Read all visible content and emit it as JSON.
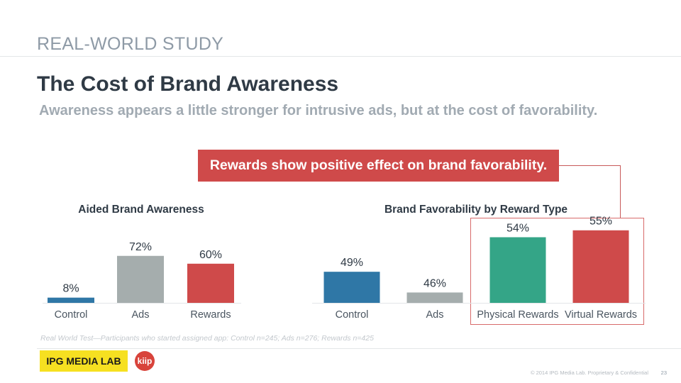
{
  "header": {
    "section_label": "REAL-WORLD STUDY",
    "title": "The Cost of Brand Awareness",
    "subtitle": "Awareness appears a little stronger for intrusive ads, but at the cost of favorability."
  },
  "callout": {
    "text": "Rewards show positive effect on brand favorability."
  },
  "chart_data": [
    {
      "type": "bar",
      "title": "Aided Brand Awareness",
      "categories": [
        "Control",
        "Ads",
        "Rewards"
      ],
      "values": [
        8,
        72,
        60
      ],
      "value_labels": [
        "8%",
        "72%",
        "60%"
      ],
      "colors": [
        "#2f77a6",
        "#a5adad",
        "#cf4a4a"
      ],
      "unit": "%",
      "ylim": [
        0,
        100
      ],
      "grid": false,
      "xlabel": "",
      "ylabel": ""
    },
    {
      "type": "bar",
      "title": "Brand Favorability by Reward Type",
      "categories": [
        "Control",
        "Ads",
        "Physical Rewards",
        "Virtual Rewards"
      ],
      "values": [
        49,
        46,
        54,
        55
      ],
      "value_labels": [
        "49%",
        "46%",
        "54%",
        "55%"
      ],
      "colors": [
        "#2f77a6",
        "#a5adad",
        "#34a587",
        "#cf4a4a"
      ],
      "unit": "%",
      "ylim": [
        44.5,
        56
      ],
      "grid": false,
      "xlabel": "",
      "ylabel": ""
    }
  ],
  "footnote": "Real World Test—Participants who started assigned app: Control n=245; Ads n=276; Rewards n=425",
  "footer": {
    "ipg_logo": "IPG MEDIA LAB",
    "kiip_logo": "kiip",
    "copyright": "© 2014 IPG Media Lab. Proprietary & Confidential",
    "page_number": "23"
  }
}
